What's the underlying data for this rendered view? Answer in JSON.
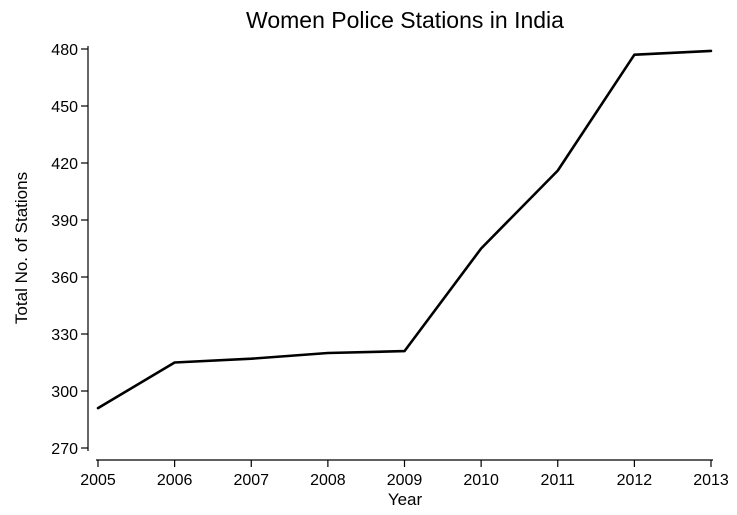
{
  "chart_data": {
    "type": "line",
    "title": "Women Police Stations in India",
    "xlabel": "Year",
    "ylabel": "Total No. of Stations",
    "x": [
      2005,
      2006,
      2007,
      2008,
      2009,
      2010,
      2011,
      2012,
      2013
    ],
    "series": [
      {
        "values": [
          291,
          315,
          317,
          320,
          321,
          375,
          416,
          477,
          479
        ]
      }
    ],
    "xlim": [
      2005,
      2013
    ],
    "ylim": [
      270,
      480
    ],
    "yticks": [
      270,
      300,
      330,
      360,
      390,
      420,
      450,
      480
    ],
    "xticks": [
      2005,
      2006,
      2007,
      2008,
      2009,
      2010,
      2011,
      2012,
      2013
    ],
    "grid": false,
    "legend": "none",
    "line_color": "#000000"
  }
}
